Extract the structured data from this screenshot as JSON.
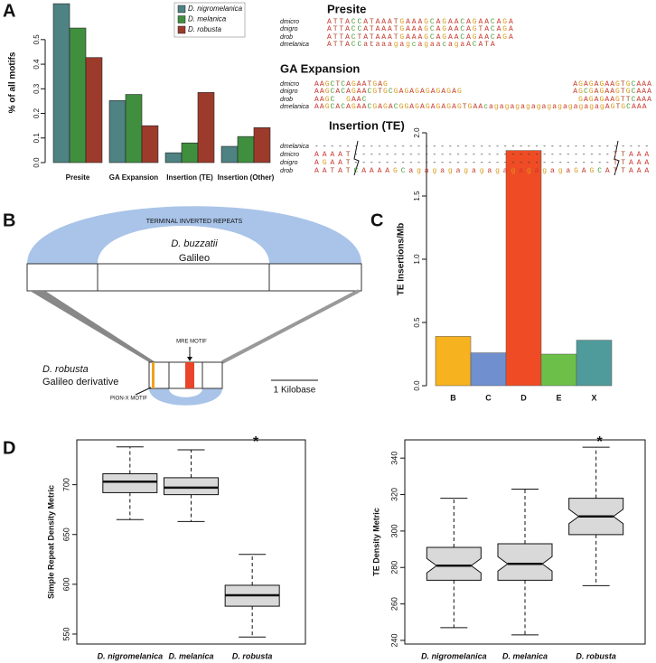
{
  "panel_labels": [
    "A",
    "B",
    "C",
    "D"
  ],
  "chart_data": [
    {
      "type": "bar",
      "ylabel": "% of all motifs",
      "categories": [
        "Presite",
        "GA Expansion",
        "Insertion (TE)",
        "Insertion (Other)"
      ],
      "series": [
        {
          "name": "D. nigromelanica",
          "color": "#4e8283",
          "values": [
            0.646,
            0.252,
            0.04,
            0.066
          ]
        },
        {
          "name": "D. melanica",
          "color": "#3f8f3f",
          "values": [
            0.547,
            0.277,
            0.08,
            0.106
          ]
        },
        {
          "name": "D. robusta",
          "color": "#9c3b2c",
          "values": [
            0.427,
            0.15,
            0.285,
            0.142
          ]
        }
      ],
      "ylim": [
        0,
        0.65
      ],
      "yticks": [
        {
          "value": 0,
          "label": "0.0"
        },
        {
          "value": 0.1,
          "label": "0.1"
        },
        {
          "value": 0.2,
          "label": "0.2"
        },
        {
          "value": 0.3,
          "label": "0.3"
        },
        {
          "value": 0.4,
          "label": "0.4"
        },
        {
          "value": 0.5,
          "label": "0.5"
        }
      ],
      "legend": "top"
    },
    {
      "type": "bar",
      "ylabel": "TE Insertions/Mb",
      "categories": [
        "B",
        "C",
        "D",
        "E",
        "X"
      ],
      "values": [
        0.39,
        0.26,
        1.86,
        0.25,
        0.36
      ],
      "colors": [
        "#f7b21f",
        "#6f8fcf",
        "#ef4c25",
        "#6cc04a",
        "#4f9a9a"
      ],
      "ylim": [
        0,
        2
      ],
      "yticks": [
        {
          "value": 0,
          "label": "0.0"
        },
        {
          "value": 0.5,
          "label": "0.5"
        },
        {
          "value": 1,
          "label": "1.0"
        },
        {
          "value": 1.5,
          "label": "1.5"
        },
        {
          "value": 2,
          "label": "2.0"
        }
      ]
    },
    {
      "type": "box",
      "ylabel": "Simple Repeat Density Metric",
      "categories": [
        "D. nigromelanica",
        "D. melanica",
        "D. robusta"
      ],
      "boxes": [
        {
          "min": 665,
          "q1": 692,
          "median": 703,
          "q3": 711,
          "max": 738
        },
        {
          "min": 663,
          "q1": 690,
          "median": 697,
          "q3": 707,
          "max": 735
        },
        {
          "min": 547,
          "q1": 578,
          "median": 589,
          "q3": 599,
          "max": 630
        }
      ],
      "ylim": [
        540,
        745
      ],
      "yticks": [
        550,
        600,
        650,
        700
      ],
      "annotation": "*",
      "annotation_category": "D. robusta",
      "notched": false
    },
    {
      "type": "box",
      "ylabel": "TE Density Metric",
      "categories": [
        "D. nigromelanica",
        "D. melanica",
        "D. robusta"
      ],
      "boxes": [
        {
          "min": 247,
          "q1": 273,
          "median": 281,
          "q3": 291,
          "max": 318
        },
        {
          "min": 243,
          "q1": 273,
          "median": 282,
          "q3": 293,
          "max": 323
        },
        {
          "min": 270,
          "q1": 298,
          "median": 308,
          "q3": 318,
          "max": 346
        }
      ],
      "ylim": [
        238,
        350
      ],
      "yticks": [
        240,
        260,
        280,
        300,
        320,
        340
      ],
      "annotation": "*",
      "annotation_category": "D. robusta",
      "notched": true
    }
  ],
  "alignments": [
    {
      "title": "Presite",
      "rows": [
        {
          "species": "dmicro",
          "seq": "ATTACCATAAATGAAAGCAGAACAGAACAGA"
        },
        {
          "species": "dnigro",
          "seq": "ATTACCATAAATGAAAGCAGAACAGTACAGA"
        },
        {
          "species": "drob",
          "seq": "ATTACTATAAATGAAAGCAGAACAGAACAGA"
        },
        {
          "species": "dmelanica",
          "seq": "ATTACCataaagagcagaacagaACATA"
        }
      ]
    },
    {
      "title": "GA Expansion",
      "rows": [
        {
          "species": "dmicro",
          "seq": "AAGCTCAGAATGAG",
          "seq_right": "AGAGAGAAGTGCAAA"
        },
        {
          "species": "dnigro",
          "seq": "AAGCACAGAACGTGCGAGAGAGAGAGAG",
          "seq_right": "AGCGAGAAGTGCAAA"
        },
        {
          "species": "drob",
          "seq": "AAGC  GAAC",
          "seq_right": "GAGAGAAGTTCAAA"
        },
        {
          "species": "dmelanica",
          "seq": "AAGCACAGAACGAGACGGAGAGAGAGAGTGAAcagagagagagagagagagagagAGTGCAAA"
        }
      ]
    },
    {
      "title": "Insertion (TE)",
      "rows": [
        {
          "species": "dmelanica",
          "seq": "-------------------------------------------"
        },
        {
          "species": "dmicro",
          "seq": "AAAAT---------------------------------TTAAA"
        },
        {
          "species": "dnigro",
          "seq": "AGAAT---------------------------------TTAAA"
        },
        {
          "species": "drob",
          "seq": "AATATCAAAAGCagagagagagagagagagagaGAGCATTAAA"
        }
      ]
    }
  ],
  "base_colors": {
    "A": "#c8342a",
    "C": "#4a9a3a",
    "G": "#d99a1a",
    "T": "#a8482a"
  },
  "diagram": {
    "tir": "TERMINAL INVERTED REPEATS",
    "source_species": "D. buzzatii",
    "source_element": "Galileo",
    "derived_species": "D. robusta",
    "derived_element": "Galileo derivative",
    "mre": "MRE MOTIF",
    "pion": "PION-X MOTIF",
    "scale": "1 Kilobase"
  }
}
